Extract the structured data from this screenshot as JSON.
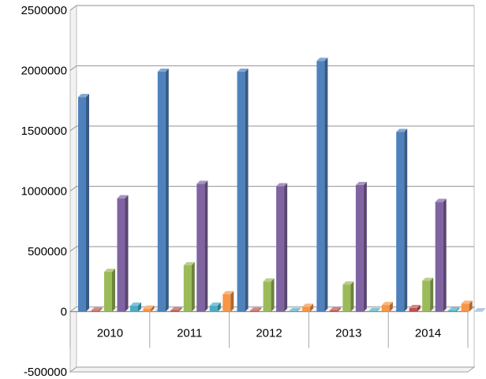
{
  "chart_data": {
    "type": "bar",
    "categories": [
      "2010",
      "2011",
      "2012",
      "2013",
      "2014"
    ],
    "y_ticks": [
      "-500000",
      "0",
      "500000",
      "1000000",
      "1500000",
      "2000000",
      "2500000"
    ],
    "ylim": [
      -500000,
      2500000
    ],
    "grid": true,
    "legend": "none",
    "series": [
      {
        "color": "#4f81bd",
        "values": [
          1780000,
          1990000,
          1990000,
          2080000,
          1490000
        ]
      },
      {
        "color": "#c0504d",
        "values": [
          8000,
          10000,
          8000,
          10000,
          30000
        ]
      },
      {
        "color": "#9bbb59",
        "values": [
          330000,
          385000,
          250000,
          225000,
          255000
        ]
      },
      {
        "color": "#8064a2",
        "values": [
          940000,
          1060000,
          1040000,
          1050000,
          910000
        ]
      },
      {
        "color": "#4bacc6",
        "values": [
          50000,
          50000,
          5000,
          5000,
          10000
        ]
      },
      {
        "color": "#f79646",
        "values": [
          25000,
          145000,
          40000,
          55000,
          65000
        ]
      },
      {
        "color": "#95b3d7",
        "values": [
          15000,
          5000,
          3000,
          3000,
          3000
        ]
      }
    ]
  }
}
